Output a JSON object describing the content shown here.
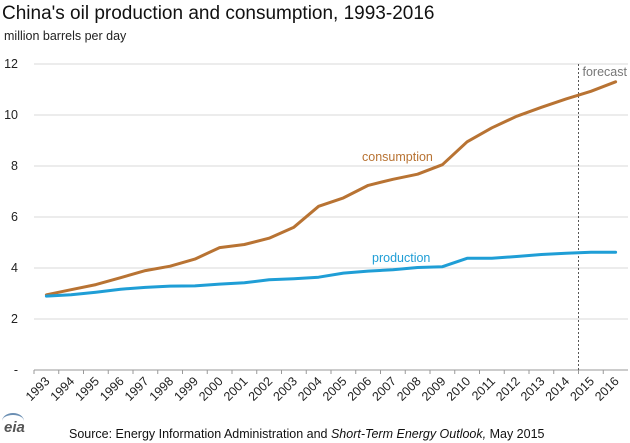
{
  "title": "China's oil production and consumption, 1993-2016",
  "subtitle": "million barrels  per day",
  "footer": {
    "logo_text": "eia",
    "source_prefix": "Source: Energy Information Administration and ",
    "source_italic": "Short-Term Energy Outlook,",
    "source_suffix": " May 2015"
  },
  "colors": {
    "consumption": "#b87333",
    "production": "#1f9ed6",
    "grid": "#d9d9d9",
    "forecast_line": "#555555"
  },
  "chart_data": {
    "type": "line",
    "x": [
      1993,
      1994,
      1995,
      1996,
      1997,
      1998,
      1999,
      2000,
      2001,
      2002,
      2003,
      2004,
      2005,
      2006,
      2007,
      2008,
      2009,
      2010,
      2011,
      2012,
      2013,
      2014,
      2015,
      2016
    ],
    "x_tick_labels": [
      "1993",
      "1994",
      "1995",
      "1996",
      "1997",
      "1998",
      "1999",
      "2000",
      "2001",
      "2002",
      "2003",
      "2004",
      "2005",
      "2006",
      "2007",
      "2008",
      "2009",
      "2010",
      "2011",
      "2012",
      "2013",
      "2014",
      "2015",
      "2016"
    ],
    "y_tick_labels": [
      "-",
      "2",
      "4",
      "6",
      "8",
      "10",
      "12"
    ],
    "ylim": [
      0,
      12
    ],
    "y_ticks": [
      0,
      2,
      4,
      6,
      8,
      10,
      12
    ],
    "grid": "horizontal",
    "series": [
      {
        "name": "consumption",
        "color": "#b87333",
        "values": [
          2.95,
          3.15,
          3.35,
          3.62,
          3.9,
          4.07,
          4.35,
          4.8,
          4.92,
          5.17,
          5.6,
          6.42,
          6.75,
          7.24,
          7.48,
          7.68,
          8.05,
          8.95,
          9.5,
          9.95,
          10.3,
          10.63,
          10.93,
          11.3
        ]
      },
      {
        "name": "production",
        "color": "#1f9ed6",
        "values": [
          2.9,
          2.95,
          3.05,
          3.17,
          3.24,
          3.29,
          3.3,
          3.37,
          3.42,
          3.54,
          3.58,
          3.64,
          3.8,
          3.88,
          3.93,
          4.02,
          4.05,
          4.38,
          4.38,
          4.45,
          4.53,
          4.58,
          4.62,
          4.62
        ]
      }
    ],
    "annotations": [
      {
        "text": "forecast",
        "at_year_boundary": [
          2014,
          2015
        ]
      },
      {
        "text": "consumption",
        "series": "consumption"
      },
      {
        "text": "production",
        "series": "production"
      }
    ]
  }
}
